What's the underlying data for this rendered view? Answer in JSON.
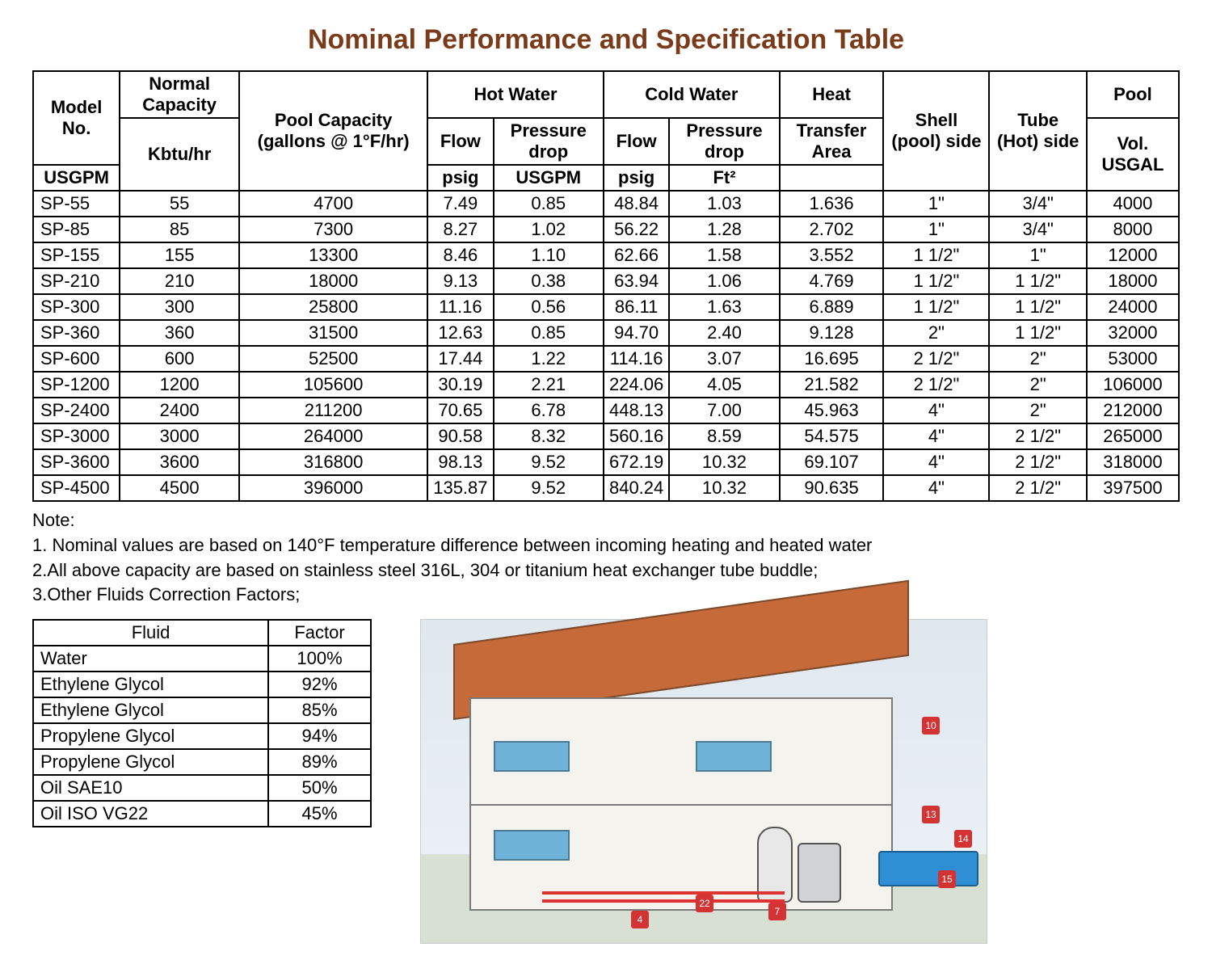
{
  "title": {
    "text": "Nominal Performance and Specification Table",
    "color": "#7a3b1a",
    "fontsize": 34
  },
  "spec_table": {
    "header": {
      "model_no": "Model No.",
      "normal_capacity": "Normal Capacity",
      "normal_capacity_unit": "Kbtu/hr",
      "pool_capacity": "Pool Capacity (gallons @ 1°F/hr)",
      "hot_water": "Hot Water",
      "cold_water": "Cold Water",
      "heat": "Heat",
      "flow": "Flow",
      "pressure_drop": "Pressure drop",
      "transfer_area": "Transfer Area",
      "shell_side": "Shell (pool) side",
      "tube_side": "Tube (Hot) side",
      "pool": "Pool",
      "pool_vol": "Vol. USGAL",
      "usgpm": "USGPM",
      "psig": "psig",
      "ft2": "Ft²"
    },
    "columns": [
      "model",
      "kbtu",
      "pool_cap",
      "hot_flow",
      "hot_pd",
      "cold_flow",
      "cold_pd",
      "heat_area",
      "shell",
      "tube",
      "pool_vol"
    ],
    "rows": [
      [
        "SP-55",
        "55",
        "4700",
        "7.49",
        "0.85",
        "48.84",
        "1.03",
        "1.636",
        "1\"",
        "3/4\"",
        "4000"
      ],
      [
        "SP-85",
        "85",
        "7300",
        "8.27",
        "1.02",
        "56.22",
        "1.28",
        "2.702",
        "1\"",
        "3/4\"",
        "8000"
      ],
      [
        "SP-155",
        "155",
        "13300",
        "8.46",
        "1.10",
        "62.66",
        "1.58",
        "3.552",
        "1 1/2\"",
        "1\"",
        "12000"
      ],
      [
        "SP-210",
        "210",
        "18000",
        "9.13",
        "0.38",
        "63.94",
        "1.06",
        "4.769",
        "1 1/2\"",
        "1 1/2\"",
        "18000"
      ],
      [
        "SP-300",
        "300",
        "25800",
        "11.16",
        "0.56",
        "86.11",
        "1.63",
        "6.889",
        "1 1/2\"",
        "1 1/2\"",
        "24000"
      ],
      [
        "SP-360",
        "360",
        "31500",
        "12.63",
        "0.85",
        "94.70",
        "2.40",
        "9.128",
        "2\"",
        "1 1/2\"",
        "32000"
      ],
      [
        "SP-600",
        "600",
        "52500",
        "17.44",
        "1.22",
        "114.16",
        "3.07",
        "16.695",
        "2 1/2\"",
        "2\"",
        "53000"
      ],
      [
        "SP-1200",
        "1200",
        "105600",
        "30.19",
        "2.21",
        "224.06",
        "4.05",
        "21.582",
        "2 1/2\"",
        "2\"",
        "106000"
      ],
      [
        "SP-2400",
        "2400",
        "211200",
        "70.65",
        "6.78",
        "448.13",
        "7.00",
        "45.963",
        "4\"",
        "2\"",
        "212000"
      ],
      [
        "SP-3000",
        "3000",
        "264000",
        "90.58",
        "8.32",
        "560.16",
        "8.59",
        "54.575",
        "4\"",
        "2 1/2\"",
        "265000"
      ],
      [
        "SP-3600",
        "3600",
        "316800",
        "98.13",
        "9.52",
        "672.19",
        "10.32",
        "69.107",
        "4\"",
        "2 1/2\"",
        "318000"
      ],
      [
        "SP-4500",
        "4500",
        "396000",
        "135.87",
        "9.52",
        "840.24",
        "10.32",
        "90.635",
        "4\"",
        "2 1/2\"",
        "397500"
      ]
    ],
    "border_color": "#000000",
    "fontsize": 22
  },
  "notes": {
    "heading": "Note:",
    "items": [
      "1. Nominal values are based on 140°F temperature difference between incoming heating and heated water",
      "2.All above capacity are based on stainless steel 316L, 304 or titanium heat exchanger tube buddle;",
      "3.Other Fluids Correction Factors;"
    ]
  },
  "fluid_table": {
    "header": {
      "fluid": "Fluid",
      "factor": "Factor"
    },
    "rows": [
      [
        "Water",
        "100%"
      ],
      [
        "Ethylene Glycol",
        "92%"
      ],
      [
        "Ethylene Glycol",
        "85%"
      ],
      [
        "Propylene Glycol",
        "94%"
      ],
      [
        "Propylene Glycol",
        "89%"
      ],
      [
        "Oil SAE10",
        "50%"
      ],
      [
        "Oil ISO VG22",
        "45%"
      ]
    ],
    "border_color": "#000000",
    "fontsize": 22
  },
  "illustration": {
    "type": "infographic",
    "description": "Cutaway isometric house showing pool heating plumbing",
    "colors": {
      "roof": "#c76a3a",
      "walls": "#f5f3ee",
      "windows": "#6fb3d9",
      "pool": "#2f8fd4",
      "pipes": "#d33333",
      "ground": "#d8e0d3",
      "sky": "#e6ecf2",
      "badge": "#d33333"
    },
    "badges": [
      "4",
      "7",
      "10",
      "13",
      "14",
      "15",
      "22"
    ]
  }
}
